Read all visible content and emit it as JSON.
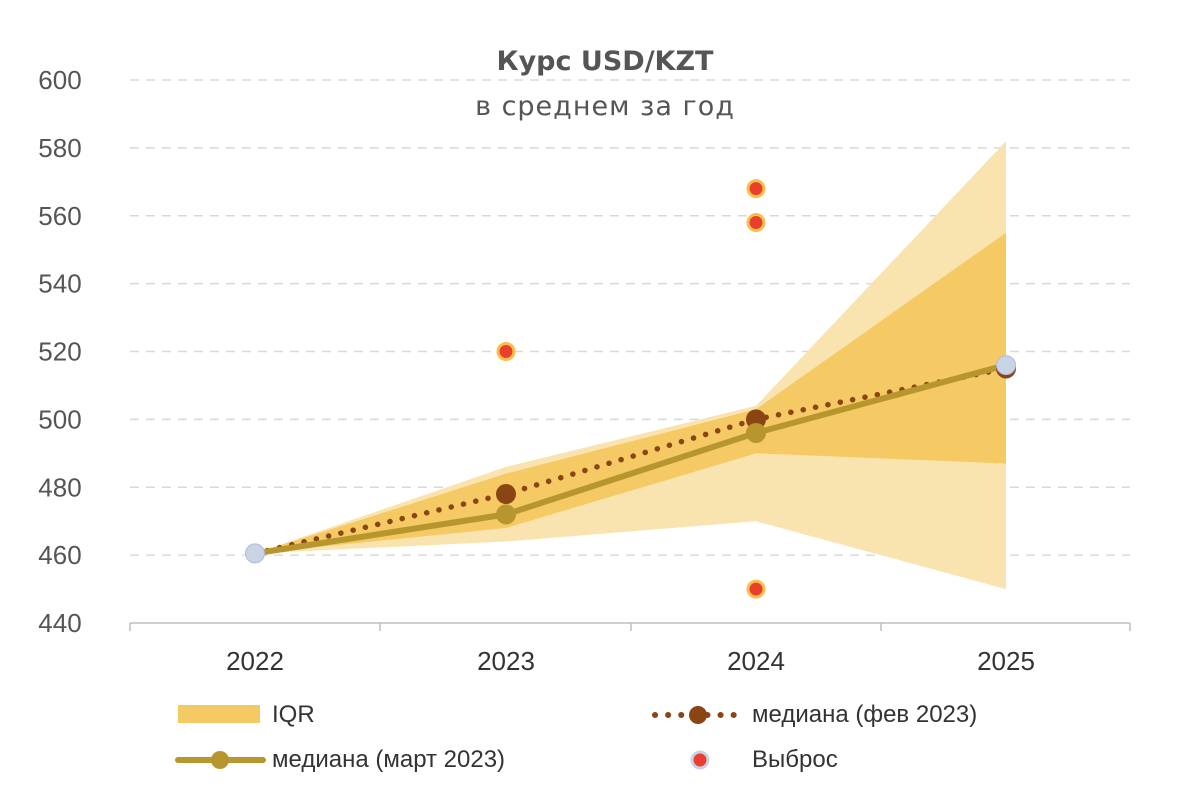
{
  "chart_data": {
    "type": "line",
    "title": "Курс USD/KZT",
    "subtitle": "в среднем за год",
    "x": [
      "2022",
      "2023",
      "2024",
      "2025"
    ],
    "ylim": [
      440,
      600
    ],
    "yticks": [
      440,
      460,
      480,
      500,
      520,
      540,
      560,
      580,
      600
    ],
    "grid": true,
    "legend_position": "bottom",
    "range_outer": {
      "low": [
        460.5,
        464,
        470,
        450
      ],
      "high": [
        460.5,
        486,
        504,
        582
      ]
    },
    "iqr": {
      "low": [
        460.5,
        468,
        490,
        487
      ],
      "high": [
        460.5,
        484,
        503,
        555
      ]
    },
    "series": [
      {
        "name": "медиана (фев 2023)",
        "values": [
          460.5,
          478,
          500,
          515
        ],
        "color": "#8b4513",
        "style": "dotted"
      },
      {
        "name": "медиана (март 2023)",
        "values": [
          460.5,
          472,
          496,
          516
        ],
        "color": "#b8962e",
        "style": "solid"
      }
    ],
    "outliers": [
      {
        "x": "2023",
        "y": 520
      },
      {
        "x": "2024",
        "y": 568
      },
      {
        "x": "2024",
        "y": 558
      },
      {
        "x": "2024",
        "y": 450
      }
    ],
    "legend": {
      "iqr": "IQR",
      "median_feb": "медиана (фев 2023)",
      "median_mar": "медиана (март 2023)",
      "outlier": "Выброс"
    },
    "colors": {
      "outer_band": "#f9e4b0",
      "iqr_band": "#f5ca65",
      "median_feb": "#8b4513",
      "median_mar": "#b8962e",
      "outlier_fill": "#e8402c",
      "outlier_ring": "#f7c04a",
      "anchor_point": "#c9d3e6"
    }
  }
}
